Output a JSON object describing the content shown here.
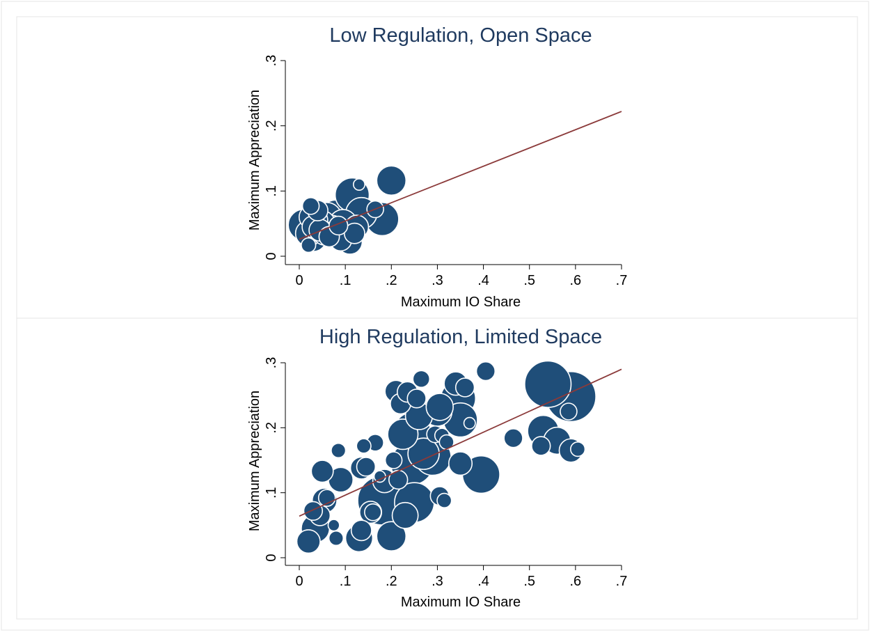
{
  "chart_data": [
    {
      "type": "scatter",
      "title": "Low Regulation, Open Space",
      "xlabel": "Maximum IO Share",
      "ylabel": "Maximum Appreciation",
      "xlim": [
        0,
        0.7
      ],
      "ylim": [
        0,
        0.3
      ],
      "x_ticks": [
        0,
        0.1,
        0.2,
        0.3,
        0.4,
        0.5,
        0.6,
        0.7
      ],
      "x_tick_labels": [
        "0",
        ".1",
        ".2",
        ".3",
        ".4",
        ".5",
        ".6",
        ".7"
      ],
      "y_ticks": [
        0,
        0.1,
        0.2,
        0.3
      ],
      "y_tick_labels": [
        "0",
        ".1",
        ".2",
        ".3"
      ],
      "grid": false,
      "legend": "none",
      "marker": "bubble (size-weighted)",
      "colors": {
        "marker_fill": "#1f4e79",
        "marker_edge": "#ffffff",
        "fit_line": "#8b3a3a"
      },
      "fit_line": {
        "x": [
          0,
          0.7
        ],
        "y": [
          0.026,
          0.222
        ]
      },
      "points": [
        {
          "x": 0.01,
          "y": 0.048,
          "w": 14
        },
        {
          "x": 0.02,
          "y": 0.035,
          "w": 9
        },
        {
          "x": 0.025,
          "y": 0.06,
          "w": 7
        },
        {
          "x": 0.025,
          "y": 0.077,
          "w": 3
        },
        {
          "x": 0.02,
          "y": 0.017,
          "w": 2
        },
        {
          "x": 0.03,
          "y": 0.045,
          "w": 6
        },
        {
          "x": 0.03,
          "y": 0.028,
          "w": 10
        },
        {
          "x": 0.035,
          "y": 0.055,
          "w": 8
        },
        {
          "x": 0.045,
          "y": 0.04,
          "w": 6
        },
        {
          "x": 0.04,
          "y": 0.07,
          "w": 5
        },
        {
          "x": 0.05,
          "y": 0.05,
          "w": 9
        },
        {
          "x": 0.055,
          "y": 0.035,
          "w": 7
        },
        {
          "x": 0.06,
          "y": 0.06,
          "w": 12
        },
        {
          "x": 0.065,
          "y": 0.03,
          "w": 5
        },
        {
          "x": 0.07,
          "y": 0.042,
          "w": 10
        },
        {
          "x": 0.08,
          "y": 0.06,
          "w": 17
        },
        {
          "x": 0.085,
          "y": 0.047,
          "w": 4
        },
        {
          "x": 0.09,
          "y": 0.025,
          "w": 6
        },
        {
          "x": 0.095,
          "y": 0.05,
          "w": 11
        },
        {
          "x": 0.1,
          "y": 0.035,
          "w": 9
        },
        {
          "x": 0.11,
          "y": 0.022,
          "w": 8
        },
        {
          "x": 0.115,
          "y": 0.094,
          "w": 17
        },
        {
          "x": 0.12,
          "y": 0.035,
          "w": 5
        },
        {
          "x": 0.125,
          "y": 0.045,
          "w": 7
        },
        {
          "x": 0.13,
          "y": 0.11,
          "w": 1
        },
        {
          "x": 0.135,
          "y": 0.066,
          "w": 14
        },
        {
          "x": 0.165,
          "y": 0.072,
          "w": 3
        },
        {
          "x": 0.18,
          "y": 0.057,
          "w": 16
        },
        {
          "x": 0.2,
          "y": 0.116,
          "w": 12
        }
      ]
    },
    {
      "type": "scatter",
      "title": "High Regulation, Limited Space",
      "xlabel": "Maximum IO Share",
      "ylabel": "Maximum Appreciation",
      "xlim": [
        0,
        0.7
      ],
      "ylim": [
        0,
        0.3
      ],
      "x_ticks": [
        0,
        0.1,
        0.2,
        0.3,
        0.4,
        0.5,
        0.6,
        0.7
      ],
      "x_tick_labels": [
        "0",
        ".1",
        ".2",
        ".3",
        ".4",
        ".5",
        ".6",
        ".7"
      ],
      "y_ticks": [
        0,
        0.1,
        0.2,
        0.3
      ],
      "y_tick_labels": [
        "0",
        ".1",
        ".2",
        ".3"
      ],
      "grid": false,
      "legend": "none",
      "marker": "bubble (size-weighted)",
      "colors": {
        "marker_fill": "#1f4e79",
        "marker_edge": "#ffffff",
        "fit_line": "#8b3a3a"
      },
      "fit_line": {
        "x": [
          0,
          0.7
        ],
        "y": [
          0.064,
          0.29
        ]
      },
      "points": [
        {
          "x": 0.02,
          "y": 0.025,
          "w": 7
        },
        {
          "x": 0.03,
          "y": 0.072,
          "w": 4
        },
        {
          "x": 0.035,
          "y": 0.045,
          "w": 11
        },
        {
          "x": 0.045,
          "y": 0.065,
          "w": 5
        },
        {
          "x": 0.05,
          "y": 0.133,
          "w": 6
        },
        {
          "x": 0.055,
          "y": 0.088,
          "w": 8
        },
        {
          "x": 0.06,
          "y": 0.092,
          "w": 3
        },
        {
          "x": 0.075,
          "y": 0.05,
          "w": 1
        },
        {
          "x": 0.08,
          "y": 0.03,
          "w": 2
        },
        {
          "x": 0.085,
          "y": 0.165,
          "w": 2
        },
        {
          "x": 0.09,
          "y": 0.12,
          "w": 8
        },
        {
          "x": 0.13,
          "y": 0.03,
          "w": 10
        },
        {
          "x": 0.135,
          "y": 0.042,
          "w": 5
        },
        {
          "x": 0.135,
          "y": 0.138,
          "w": 6
        },
        {
          "x": 0.14,
          "y": 0.172,
          "w": 2
        },
        {
          "x": 0.145,
          "y": 0.14,
          "w": 4
        },
        {
          "x": 0.155,
          "y": 0.07,
          "w": 6
        },
        {
          "x": 0.16,
          "y": 0.07,
          "w": 3
        },
        {
          "x": 0.165,
          "y": 0.177,
          "w": 3
        },
        {
          "x": 0.175,
          "y": 0.125,
          "w": 1
        },
        {
          "x": 0.18,
          "y": 0.088,
          "w": 38
        },
        {
          "x": 0.185,
          "y": 0.118,
          "w": 7
        },
        {
          "x": 0.2,
          "y": 0.033,
          "w": 12
        },
        {
          "x": 0.205,
          "y": 0.15,
          "w": 3
        },
        {
          "x": 0.21,
          "y": 0.256,
          "w": 6
        },
        {
          "x": 0.215,
          "y": 0.12,
          "w": 4
        },
        {
          "x": 0.22,
          "y": 0.237,
          "w": 5
        },
        {
          "x": 0.225,
          "y": 0.19,
          "w": 13
        },
        {
          "x": 0.23,
          "y": 0.065,
          "w": 9
        },
        {
          "x": 0.235,
          "y": 0.255,
          "w": 5
        },
        {
          "x": 0.245,
          "y": 0.195,
          "w": 20
        },
        {
          "x": 0.245,
          "y": 0.145,
          "w": 28
        },
        {
          "x": 0.25,
          "y": 0.085,
          "w": 24
        },
        {
          "x": 0.255,
          "y": 0.245,
          "w": 4
        },
        {
          "x": 0.26,
          "y": 0.218,
          "w": 10
        },
        {
          "x": 0.265,
          "y": 0.275,
          "w": 3
        },
        {
          "x": 0.27,
          "y": 0.16,
          "w": 14
        },
        {
          "x": 0.29,
          "y": 0.155,
          "w": 20
        },
        {
          "x": 0.295,
          "y": 0.19,
          "w": 3
        },
        {
          "x": 0.3,
          "y": 0.225,
          "w": 12
        },
        {
          "x": 0.305,
          "y": 0.095,
          "w": 4
        },
        {
          "x": 0.305,
          "y": 0.232,
          "w": 10
        },
        {
          "x": 0.31,
          "y": 0.188,
          "w": 2
        },
        {
          "x": 0.315,
          "y": 0.088,
          "w": 2
        },
        {
          "x": 0.32,
          "y": 0.178,
          "w": 2
        },
        {
          "x": 0.34,
          "y": 0.268,
          "w": 7
        },
        {
          "x": 0.345,
          "y": 0.245,
          "w": 18
        },
        {
          "x": 0.35,
          "y": 0.212,
          "w": 17
        },
        {
          "x": 0.35,
          "y": 0.145,
          "w": 7
        },
        {
          "x": 0.36,
          "y": 0.262,
          "w": 4
        },
        {
          "x": 0.37,
          "y": 0.207,
          "w": 1
        },
        {
          "x": 0.395,
          "y": 0.128,
          "w": 21
        },
        {
          "x": 0.405,
          "y": 0.287,
          "w": 4
        },
        {
          "x": 0.465,
          "y": 0.184,
          "w": 4
        },
        {
          "x": 0.525,
          "y": 0.172,
          "w": 4
        },
        {
          "x": 0.53,
          "y": 0.195,
          "w": 14
        },
        {
          "x": 0.54,
          "y": 0.267,
          "w": 34
        },
        {
          "x": 0.56,
          "y": 0.18,
          "w": 10
        },
        {
          "x": 0.59,
          "y": 0.248,
          "w": 40
        },
        {
          "x": 0.585,
          "y": 0.225,
          "w": 3
        },
        {
          "x": 0.59,
          "y": 0.165,
          "w": 7
        },
        {
          "x": 0.605,
          "y": 0.167,
          "w": 2
        }
      ]
    }
  ]
}
